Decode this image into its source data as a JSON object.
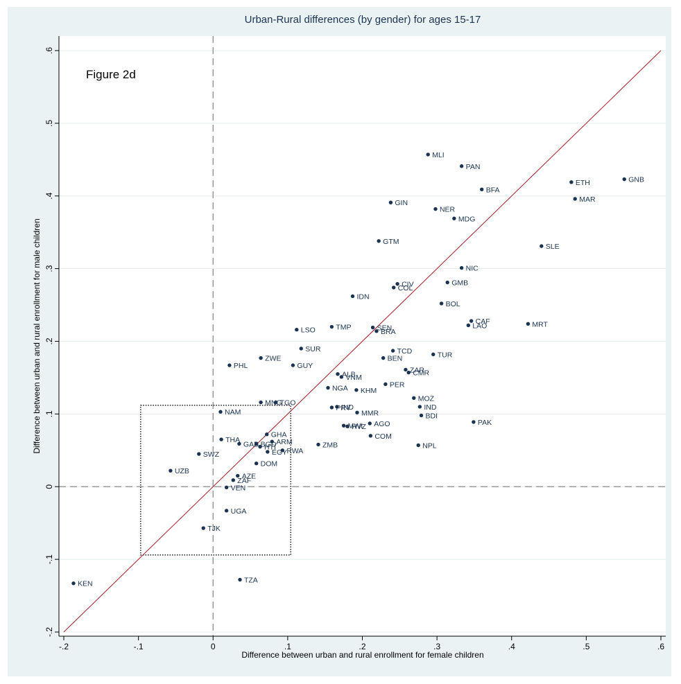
{
  "chart_data": {
    "type": "scatter",
    "title": "Urban-Rural differences (by gender) for ages 15-17",
    "annotation": "Figure 2d",
    "xlabel": "Difference between urban and rural enrollment for female children",
    "ylabel": "Difference between urban and rural enrollment for male children",
    "xlim": [
      -0.2,
      0.6
    ],
    "ylim": [
      -0.2,
      0.6
    ],
    "x_ticks": [
      {
        "value": -0.2,
        "label": "-.2"
      },
      {
        "value": -0.1,
        "label": "-.1"
      },
      {
        "value": 0,
        "label": "0"
      },
      {
        "value": 0.1,
        "label": ".1"
      },
      {
        "value": 0.2,
        "label": ".2"
      },
      {
        "value": 0.3,
        "label": ".3"
      },
      {
        "value": 0.4,
        "label": ".4"
      },
      {
        "value": 0.5,
        "label": ".5"
      },
      {
        "value": 0.6,
        "label": ".6"
      }
    ],
    "y_ticks": [
      {
        "value": -0.2,
        "label": "-.2"
      },
      {
        "value": -0.1,
        "label": "-.1"
      },
      {
        "value": 0,
        "label": "0"
      },
      {
        "value": 0.1,
        "label": ".1"
      },
      {
        "value": 0.2,
        "label": ".2"
      },
      {
        "value": 0.3,
        "label": ".3"
      },
      {
        "value": 0.4,
        "label": ".4"
      },
      {
        "value": 0.5,
        "label": ".5"
      },
      {
        "value": 0.6,
        "label": ".6"
      }
    ],
    "grid": true,
    "reference_lines": {
      "x_zero": true,
      "y_zero": true,
      "diagonal": true
    },
    "highlight_box": {
      "x": [
        -0.097,
        0.104
      ],
      "y": [
        -0.094,
        0.112
      ]
    },
    "colors": {
      "background": "#eaf2f3",
      "plot_bg": "#ffffff",
      "marker": "#1b3350",
      "diagonal": "#a31b23",
      "grid": "#e4ecee"
    },
    "points": [
      {
        "label": "MLI",
        "x": 0.288,
        "y": 0.457
      },
      {
        "label": "PAN",
        "x": 0.333,
        "y": 0.441
      },
      {
        "label": "GNB",
        "x": 0.551,
        "y": 0.423
      },
      {
        "label": "ETH",
        "x": 0.48,
        "y": 0.419
      },
      {
        "label": "BFA",
        "x": 0.36,
        "y": 0.409
      },
      {
        "label": "MAR",
        "x": 0.485,
        "y": 0.396
      },
      {
        "label": "GIN",
        "x": 0.238,
        "y": 0.391
      },
      {
        "label": "NER",
        "x": 0.298,
        "y": 0.382
      },
      {
        "label": "MDG",
        "x": 0.323,
        "y": 0.369
      },
      {
        "label": "GTM",
        "x": 0.222,
        "y": 0.338
      },
      {
        "label": "SLE",
        "x": 0.44,
        "y": 0.331
      },
      {
        "label": "NIC",
        "x": 0.333,
        "y": 0.301
      },
      {
        "label": "GMB",
        "x": 0.314,
        "y": 0.281
      },
      {
        "label": "CIV",
        "x": 0.247,
        "y": 0.279
      },
      {
        "label": "COL",
        "x": 0.242,
        "y": 0.274
      },
      {
        "label": "IDN",
        "x": 0.187,
        "y": 0.262
      },
      {
        "label": "BOL",
        "x": 0.306,
        "y": 0.252
      },
      {
        "label": "CAF",
        "x": 0.346,
        "y": 0.228
      },
      {
        "label": "MRT",
        "x": 0.422,
        "y": 0.224
      },
      {
        "label": "LAO",
        "x": 0.342,
        "y": 0.222
      },
      {
        "label": "TMP",
        "x": 0.159,
        "y": 0.22
      },
      {
        "label": "SEN",
        "x": 0.214,
        "y": 0.219
      },
      {
        "label": "LSO",
        "x": 0.112,
        "y": 0.216
      },
      {
        "label": "BRA",
        "x": 0.219,
        "y": 0.214
      },
      {
        "label": "SUR",
        "x": 0.118,
        "y": 0.19
      },
      {
        "label": "TCD",
        "x": 0.241,
        "y": 0.187
      },
      {
        "label": "TUR",
        "x": 0.295,
        "y": 0.182
      },
      {
        "label": "ZWE",
        "x": 0.064,
        "y": 0.177
      },
      {
        "label": "BEN",
        "x": 0.228,
        "y": 0.177
      },
      {
        "label": "PHL",
        "x": 0.022,
        "y": 0.167
      },
      {
        "label": "GUY",
        "x": 0.107,
        "y": 0.167
      },
      {
        "label": "ZAR",
        "x": 0.258,
        "y": 0.161
      },
      {
        "label": "CMR",
        "x": 0.262,
        "y": 0.157
      },
      {
        "label": "ALB",
        "x": 0.167,
        "y": 0.155
      },
      {
        "label": "VNM",
        "x": 0.172,
        "y": 0.151
      },
      {
        "label": "PER",
        "x": 0.231,
        "y": 0.141
      },
      {
        "label": "NGA",
        "x": 0.154,
        "y": 0.136
      },
      {
        "label": "KHM",
        "x": 0.192,
        "y": 0.133
      },
      {
        "label": "MOZ",
        "x": 0.269,
        "y": 0.122
      },
      {
        "label": "MNG",
        "x": 0.064,
        "y": 0.116
      },
      {
        "label": "TGO",
        "x": 0.084,
        "y": 0.116
      },
      {
        "label": "IND",
        "x": 0.277,
        "y": 0.11
      },
      {
        "label": "IND",
        "x": 0.166,
        "y": 0.11
      },
      {
        "label": "PRY",
        "x": 0.159,
        "y": 0.109
      },
      {
        "label": "NAM",
        "x": 0.01,
        "y": 0.103
      },
      {
        "label": "MMR",
        "x": 0.193,
        "y": 0.102
      },
      {
        "label": "BDI",
        "x": 0.279,
        "y": 0.098
      },
      {
        "label": "PAK",
        "x": 0.349,
        "y": 0.089
      },
      {
        "label": "AGO",
        "x": 0.21,
        "y": 0.087
      },
      {
        "label": "MWI",
        "x": 0.175,
        "y": 0.084
      },
      {
        "label": "HVZ",
        "x": 0.18,
        "y": 0.083
      },
      {
        "label": "GHA",
        "x": 0.072,
        "y": 0.072
      },
      {
        "label": "COM",
        "x": 0.211,
        "y": 0.07
      },
      {
        "label": "THA",
        "x": 0.011,
        "y": 0.065
      },
      {
        "label": "ARM",
        "x": 0.079,
        "y": 0.062
      },
      {
        "label": "GAB",
        "x": 0.035,
        "y": 0.059
      },
      {
        "label": "BGD",
        "x": 0.058,
        "y": 0.059
      },
      {
        "label": "ZMB",
        "x": 0.141,
        "y": 0.058
      },
      {
        "label": "NPL",
        "x": 0.275,
        "y": 0.057
      },
      {
        "label": "HTI",
        "x": 0.063,
        "y": 0.055
      },
      {
        "label": "RWA",
        "x": 0.093,
        "y": 0.05
      },
      {
        "label": "EGY",
        "x": 0.073,
        "y": 0.048
      },
      {
        "label": "SWZ",
        "x": -0.019,
        "y": 0.045
      },
      {
        "label": "DOM",
        "x": 0.058,
        "y": 0.032
      },
      {
        "label": "UZB",
        "x": -0.057,
        "y": 0.022
      },
      {
        "label": "AZE",
        "x": 0.033,
        "y": 0.015
      },
      {
        "label": "ZAF",
        "x": 0.027,
        "y": 0.009
      },
      {
        "label": "VEN",
        "x": 0.018,
        "y": -0.001
      },
      {
        "label": "UGA",
        "x": 0.018,
        "y": -0.033
      },
      {
        "label": "TJK",
        "x": -0.013,
        "y": -0.057
      },
      {
        "label": "TZA",
        "x": 0.036,
        "y": -0.128
      },
      {
        "label": "KEN",
        "x": -0.187,
        "y": -0.133
      }
    ]
  }
}
